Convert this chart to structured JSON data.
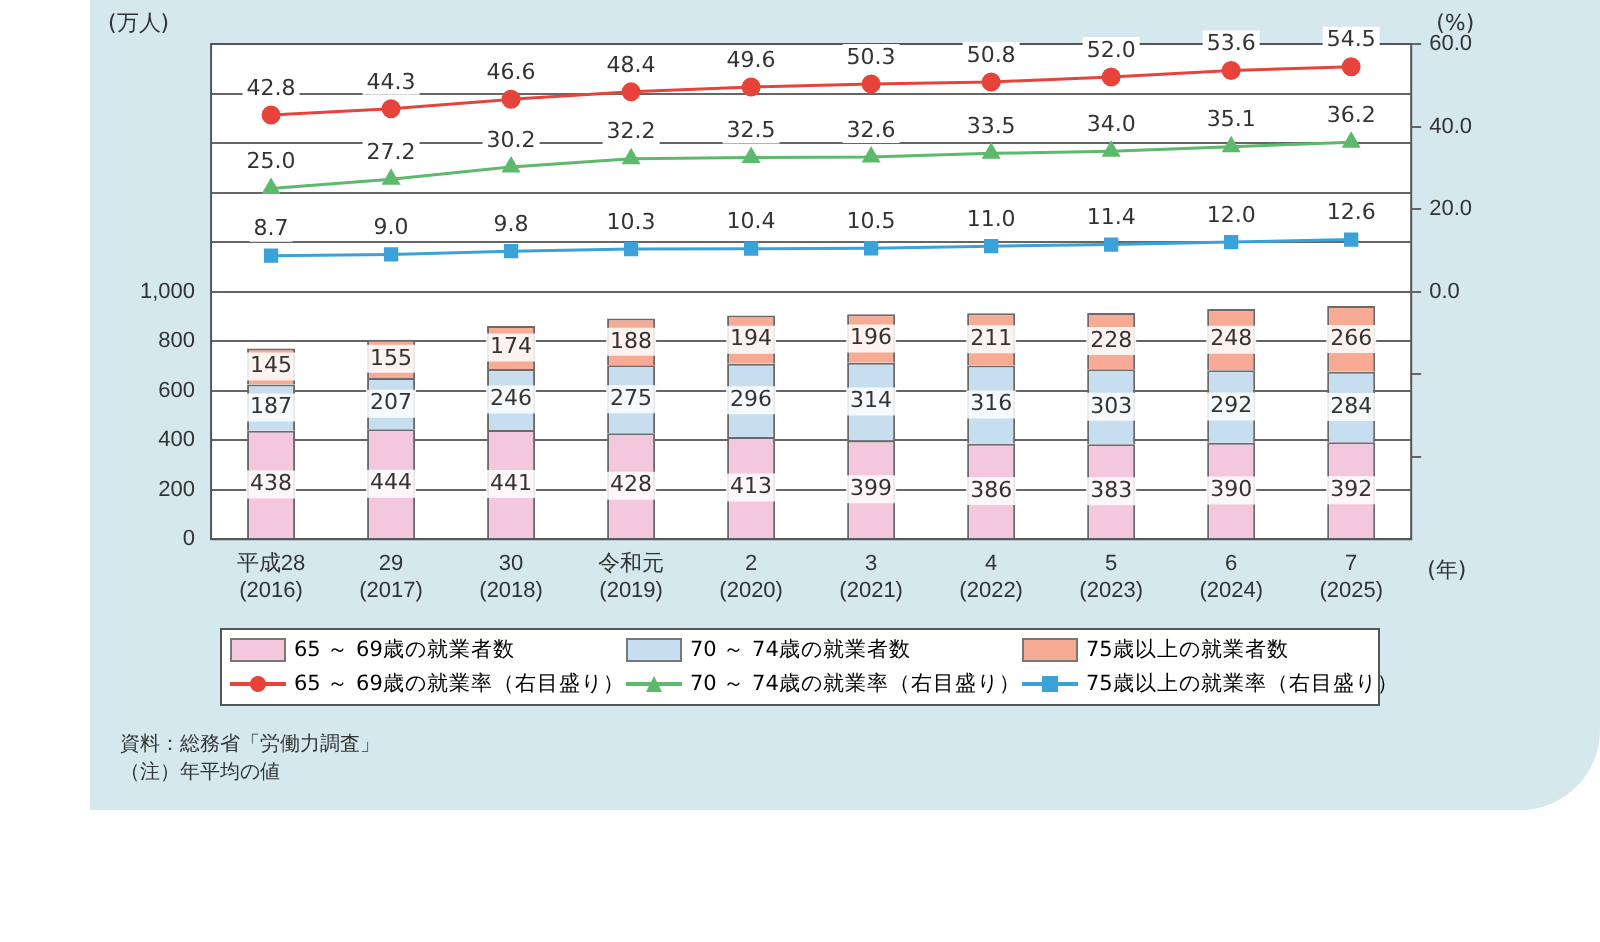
{
  "chart_data": {
    "type": "bar",
    "stacked": true,
    "data_labels": true,
    "grid": "y",
    "legend": "bottom",
    "line_style": "solid",
    "categories": [
      "平成28\n(2016)",
      "29\n(2017)",
      "30\n(2018)",
      "令和元\n(2019)",
      "2\n(2020)",
      "3\n(2021)",
      "4\n(2022)",
      "5\n(2023)",
      "6\n(2024)",
      "7\n(2025)"
    ],
    "xlabel": "(年)",
    "ylabel": "(万人)",
    "y2label": "(%)",
    "ylim": [
      0,
      2000
    ],
    "yticks": [
      0,
      {
        "value": 200,
        "label": "200"
      },
      {
        "value": 400,
        "label": "400"
      },
      {
        "value": 600,
        "label": "600"
      },
      {
        "value": 800,
        "label": "800"
      },
      {
        "value": 1000,
        "label": "1,000"
      },
      {
        "value": 1200,
        "label": null
      },
      {
        "value": 1400,
        "label": null
      },
      {
        "value": 1600,
        "label": null
      },
      {
        "value": 1800,
        "label": null
      },
      {
        "value": 2000,
        "label": null
      }
    ],
    "y2lim": [
      -60,
      60
    ],
    "y2ticks": [
      {
        "value": -40,
        "label": null
      },
      {
        "value": -20,
        "label": null
      },
      {
        "value": 0,
        "label": "0.0"
      },
      {
        "value": 20,
        "label": "20.0"
      },
      {
        "value": 40,
        "label": "40.0"
      },
      {
        "value": 60,
        "label": "60.0"
      }
    ],
    "series": [
      {
        "name": "65 ～ 69歳の就業者数",
        "color": "#f4c8dc",
        "values": [
          438,
          444,
          441,
          428,
          413,
          399,
          386,
          383,
          390,
          392
        ]
      },
      {
        "name": "70 ～ 74歳の就業者数",
        "color": "#c6def0",
        "values": [
          187,
          207,
          246,
          275,
          296,
          314,
          316,
          303,
          292,
          284
        ]
      },
      {
        "name": "75歳以上の就業者数",
        "color": "#f7ab95",
        "values": [
          145,
          155,
          174,
          188,
          194,
          196,
          211,
          228,
          248,
          266
        ]
      },
      {
        "name": "65 ～ 69歳の就業率（右目盛り）",
        "type": "line",
        "axis": "y2",
        "marker": "circle",
        "color": "#e8433b",
        "values": [
          42.8,
          44.3,
          46.6,
          48.4,
          49.6,
          50.3,
          50.8,
          52.0,
          53.6,
          54.5
        ],
        "value_labels": [
          "42.8",
          "44.3",
          "46.6",
          "48.4",
          "49.6",
          "50.3",
          "50.8",
          "52.0",
          "53.6",
          "54.5"
        ]
      },
      {
        "name": "70 ～ 74歳の就業率（右目盛り）",
        "type": "line",
        "axis": "y2",
        "marker": "triangle",
        "color": "#5db96c",
        "values": [
          25.0,
          27.2,
          30.2,
          32.2,
          32.5,
          32.6,
          33.5,
          34.0,
          35.1,
          36.2
        ],
        "value_labels": [
          "25.0",
          "27.2",
          "30.2",
          "32.2",
          "32.5",
          "32.6",
          "33.5",
          "34.0",
          "35.1",
          "36.2"
        ]
      },
      {
        "name": "75歳以上の就業率（右目盛り）",
        "type": "line",
        "axis": "y2",
        "marker": "square",
        "color": "#3ba2d9",
        "values": [
          8.7,
          9.0,
          9.8,
          10.3,
          10.4,
          10.5,
          11.0,
          11.4,
          12.0,
          12.6
        ],
        "value_labels": [
          "8.7",
          "9.0",
          "9.8",
          "10.3",
          "10.4",
          "10.5",
          "11.0",
          "11.4",
          "12.0",
          "12.6"
        ]
      }
    ],
    "annotations": [
      "資料：総務省「労働力調査」",
      "（注）年平均の値"
    ]
  }
}
